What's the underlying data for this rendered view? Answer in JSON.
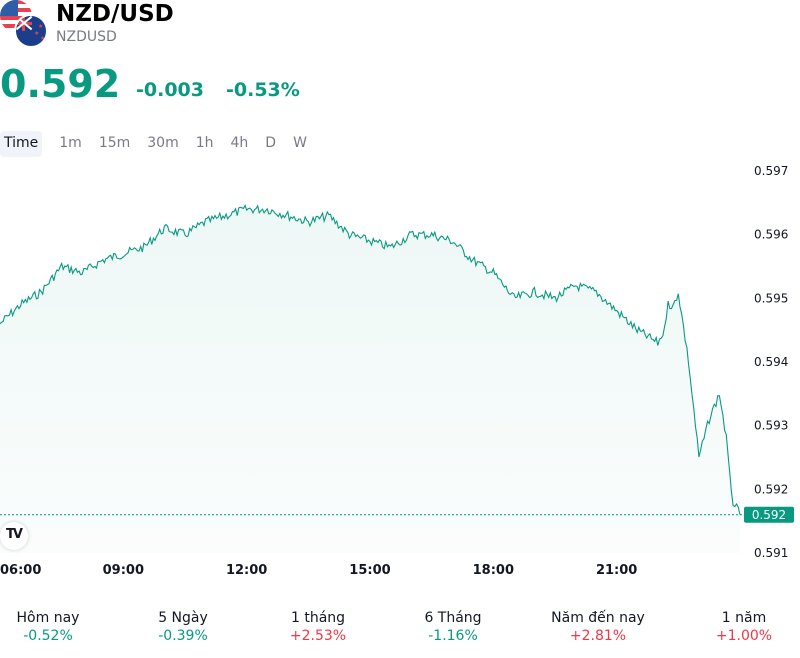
{
  "header": {
    "title": "NZD/USD",
    "symbol": "NZDUSD",
    "price": "0.592",
    "change": "-0.003",
    "change_percent": "-0.53%",
    "color_down": "#089981",
    "color_up": "#f23645"
  },
  "tabs": [
    {
      "label": "Time",
      "active": true
    },
    {
      "label": "1m",
      "active": false
    },
    {
      "label": "15m",
      "active": false
    },
    {
      "label": "30m",
      "active": false
    },
    {
      "label": "1h",
      "active": false
    },
    {
      "label": "4h",
      "active": false
    },
    {
      "label": "D",
      "active": false
    },
    {
      "label": "W",
      "active": false
    }
  ],
  "chart_data": {
    "type": "area",
    "title": "",
    "xlabel": "",
    "ylabel": "",
    "x_ticks": [
      "06:00",
      "09:00",
      "12:00",
      "15:00",
      "18:00",
      "21:00"
    ],
    "y_ticks": [
      "0.597",
      "0.596",
      "0.595",
      "0.594",
      "0.593",
      "0.592",
      "0.591"
    ],
    "ylim": [
      0.591,
      0.597
    ],
    "xlim": [
      "06:00",
      "24:00"
    ],
    "last_value_label": "0.592",
    "series": [
      {
        "x": [
          "06:00",
          "06:30",
          "07:00",
          "07:30",
          "08:00",
          "08:30",
          "09:00",
          "09:30",
          "10:00",
          "10:30",
          "11:00",
          "11:30",
          "12:00",
          "12:30",
          "13:00",
          "13:30",
          "14:00",
          "14:30",
          "15:00",
          "15:30",
          "16:00",
          "16:30",
          "17:00",
          "17:30",
          "18:00",
          "18:30",
          "19:00",
          "19:30",
          "20:00",
          "20:30",
          "21:00",
          "21:30",
          "22:00",
          "22:10",
          "22:15",
          "22:20",
          "22:30",
          "22:45",
          "23:00",
          "23:15",
          "23:30",
          "23:40",
          "23:45",
          "23:50",
          "24:00"
        ],
        "values": [
          0.5946,
          0.5949,
          0.5951,
          0.5955,
          0.5954,
          0.5956,
          0.5957,
          0.5958,
          0.5961,
          0.596,
          0.5962,
          0.5963,
          0.5964,
          0.5964,
          0.5963,
          0.5962,
          0.5963,
          0.596,
          0.5959,
          0.5958,
          0.596,
          0.596,
          0.5959,
          0.5956,
          0.5954,
          0.595,
          0.5951,
          0.595,
          0.5952,
          0.5951,
          0.5948,
          0.5945,
          0.5943,
          0.5945,
          0.595,
          0.5948,
          0.5951,
          0.594,
          0.5925,
          0.5931,
          0.5935,
          0.5928,
          0.5922,
          0.5918,
          0.5916
        ]
      }
    ],
    "line_color": "#089981",
    "fill_color": "#089981",
    "grid": false
  },
  "performance": [
    {
      "label": "Hôm nay",
      "value": "-0.52%",
      "dir": "neg"
    },
    {
      "label": "5 Ngày",
      "value": "-0.39%",
      "dir": "neg"
    },
    {
      "label": "1 tháng",
      "value": "+2.53%",
      "dir": "pos"
    },
    {
      "label": "6 Tháng",
      "value": "-1.16%",
      "dir": "neg"
    },
    {
      "label": "Năm đến nay",
      "value": "+2.81%",
      "dir": "pos"
    },
    {
      "label": "1 năm",
      "value": "+1.00%",
      "dir": "pos"
    }
  ]
}
